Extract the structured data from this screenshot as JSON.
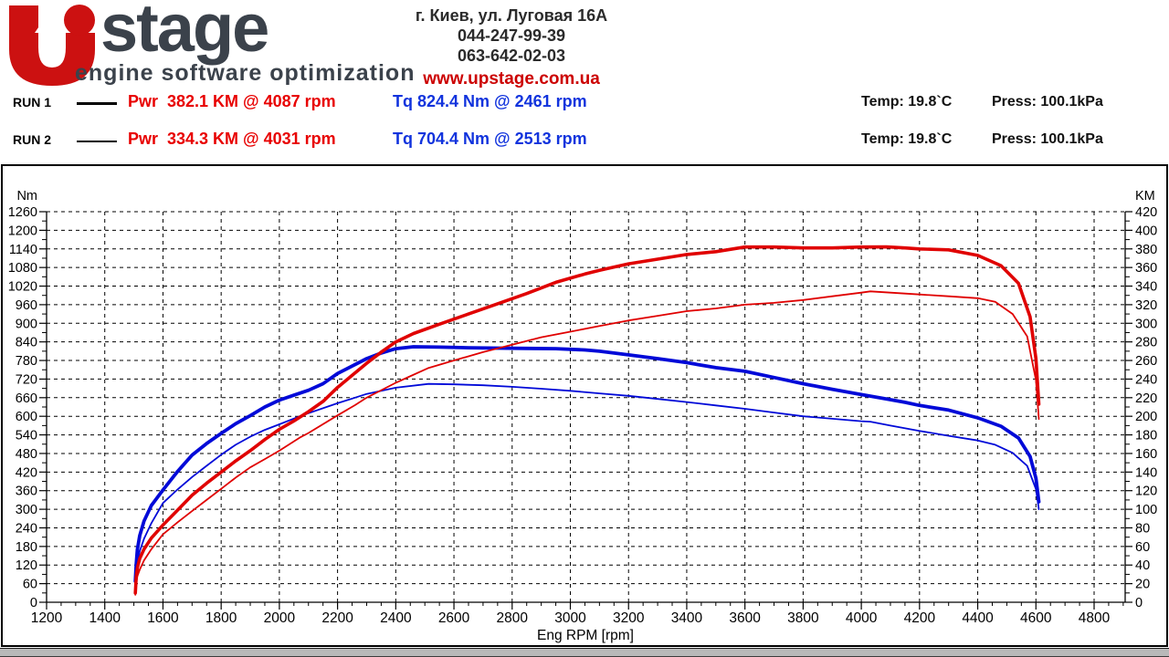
{
  "header": {
    "logo": {
      "brand_rest": "stage",
      "tagline": "engine software optimization"
    },
    "contact": {
      "address": "г. Киев, ул. Луговая 16А",
      "phone1": "044-247-99-39",
      "phone2": "063-642-02-03",
      "website": "www.upstage.com.ua"
    }
  },
  "runs": [
    {
      "label": "RUN 1",
      "power": "Pwr  382.1 KM @ 4087 rpm",
      "torque": "Tq 824.4 Nm @ 2461 rpm",
      "temp": "Temp: 19.8`C",
      "press": "Press: 100.1kPa"
    },
    {
      "label": "RUN 2",
      "power": "Pwr  334.3 KM @ 4031 rpm",
      "torque": "Tq 704.4 Nm @ 2513 rpm",
      "temp": "Temp: 19.8`C",
      "press": "Press: 100.1kPa"
    }
  ],
  "colors": {
    "curve_red": "#e00000",
    "curve_blue": "#0009d8",
    "grid": "#000000",
    "brand_gray": "#3b424b",
    "brand_red": "#cc1111"
  },
  "chart_data": {
    "type": "line",
    "title": "",
    "xlabel": "Eng RPM [rpm]",
    "x_axis": {
      "min": 1200,
      "max": 4906,
      "major_tick": 200,
      "minor_tick": 50,
      "tick_labels": [
        1200,
        1400,
        1600,
        1800,
        2000,
        2200,
        2400,
        2600,
        2800,
        3000,
        3200,
        3400,
        3600,
        3800,
        4000,
        4200,
        4400,
        4600,
        4800
      ]
    },
    "y_left": {
      "label": "Nm",
      "min": 0,
      "max": 1260,
      "major_tick": 60,
      "minor_tick": 30,
      "tick_labels": [
        0,
        60,
        120,
        180,
        240,
        300,
        360,
        420,
        480,
        540,
        600,
        660,
        720,
        780,
        840,
        900,
        960,
        1020,
        1080,
        1140,
        1200,
        1260
      ]
    },
    "y_right": {
      "label": "KM",
      "min": 0,
      "max": 420,
      "major_tick": 20,
      "minor_tick": 10,
      "tick_labels": [
        0,
        20,
        40,
        60,
        80,
        100,
        120,
        140,
        160,
        180,
        200,
        220,
        240,
        260,
        280,
        300,
        320,
        340,
        360,
        380,
        400,
        420
      ]
    },
    "grid": "dashed",
    "series": [
      {
        "name": "RUN 2 Torque",
        "axis": "left",
        "color": "#0009d8",
        "width": 1.8,
        "points": [
          [
            1505,
            55
          ],
          [
            1508,
            95
          ],
          [
            1512,
            130
          ],
          [
            1520,
            165
          ],
          [
            1535,
            205
          ],
          [
            1560,
            255
          ],
          [
            1600,
            320
          ],
          [
            1650,
            364
          ],
          [
            1700,
            404
          ],
          [
            1750,
            440
          ],
          [
            1800,
            476
          ],
          [
            1850,
            508
          ],
          [
            1900,
            534
          ],
          [
            1950,
            556
          ],
          [
            2000,
            574
          ],
          [
            2070,
            600
          ],
          [
            2100,
            610
          ],
          [
            2200,
            642
          ],
          [
            2260,
            660
          ],
          [
            2300,
            672
          ],
          [
            2400,
            692
          ],
          [
            2513,
            704.4
          ],
          [
            2600,
            703
          ],
          [
            2700,
            700
          ],
          [
            2800,
            695
          ],
          [
            2900,
            689
          ],
          [
            3000,
            682
          ],
          [
            3100,
            674
          ],
          [
            3200,
            666
          ],
          [
            3300,
            656
          ],
          [
            3400,
            646
          ],
          [
            3500,
            635
          ],
          [
            3600,
            624
          ],
          [
            3700,
            612
          ],
          [
            3800,
            600
          ],
          [
            3900,
            592
          ],
          [
            4000,
            584
          ],
          [
            4031,
            582.5
          ],
          [
            4100,
            570
          ],
          [
            4200,
            553
          ],
          [
            4300,
            537
          ],
          [
            4400,
            522
          ],
          [
            4460,
            508
          ],
          [
            4520,
            482
          ],
          [
            4570,
            440
          ],
          [
            4600,
            365
          ],
          [
            4610,
            300
          ]
        ]
      },
      {
        "name": "RUN 1 Torque",
        "axis": "left",
        "color": "#0009d8",
        "width": 3.8,
        "points": [
          [
            1505,
            68
          ],
          [
            1508,
            120
          ],
          [
            1512,
            170
          ],
          [
            1520,
            215
          ],
          [
            1535,
            262
          ],
          [
            1560,
            312
          ],
          [
            1600,
            362
          ],
          [
            1650,
            422
          ],
          [
            1700,
            475
          ],
          [
            1750,
            512
          ],
          [
            1800,
            545
          ],
          [
            1850,
            576
          ],
          [
            1900,
            602
          ],
          [
            1950,
            630
          ],
          [
            2000,
            652
          ],
          [
            2050,
            668
          ],
          [
            2100,
            684
          ],
          [
            2150,
            705
          ],
          [
            2200,
            738
          ],
          [
            2250,
            762
          ],
          [
            2300,
            786
          ],
          [
            2350,
            804
          ],
          [
            2400,
            818
          ],
          [
            2461,
            824.4
          ],
          [
            2550,
            823
          ],
          [
            2650,
            821
          ],
          [
            2750,
            820
          ],
          [
            2850,
            819
          ],
          [
            2950,
            818
          ],
          [
            3050,
            814
          ],
          [
            3100,
            810
          ],
          [
            3200,
            798
          ],
          [
            3300,
            786
          ],
          [
            3400,
            773
          ],
          [
            3500,
            757
          ],
          [
            3600,
            745
          ],
          [
            3700,
            725
          ],
          [
            3800,
            705
          ],
          [
            3900,
            687
          ],
          [
            4000,
            670
          ],
          [
            4087,
            656
          ],
          [
            4150,
            645
          ],
          [
            4200,
            635
          ],
          [
            4300,
            620
          ],
          [
            4400,
            595
          ],
          [
            4480,
            568
          ],
          [
            4540,
            530
          ],
          [
            4580,
            470
          ],
          [
            4600,
            400
          ],
          [
            4610,
            324
          ]
        ]
      },
      {
        "name": "RUN 2 Power",
        "axis": "right",
        "color": "#e00000",
        "width": 1.8,
        "points": [
          [
            1505,
            8
          ],
          [
            1508,
            20
          ],
          [
            1512,
            28
          ],
          [
            1520,
            35
          ],
          [
            1535,
            45
          ],
          [
            1560,
            57
          ],
          [
            1600,
            73
          ],
          [
            1650,
            86
          ],
          [
            1700,
            98
          ],
          [
            1750,
            110
          ],
          [
            1800,
            122
          ],
          [
            1850,
            134
          ],
          [
            1900,
            145
          ],
          [
            1950,
            154
          ],
          [
            2000,
            163
          ],
          [
            2070,
            177
          ],
          [
            2100,
            182
          ],
          [
            2200,
            201
          ],
          [
            2260,
            212
          ],
          [
            2300,
            220
          ],
          [
            2400,
            236
          ],
          [
            2513,
            252
          ],
          [
            2600,
            260
          ],
          [
            2700,
            269
          ],
          [
            2800,
            277
          ],
          [
            2900,
            285
          ],
          [
            3000,
            291
          ],
          [
            3100,
            297
          ],
          [
            3200,
            303
          ],
          [
            3300,
            308
          ],
          [
            3400,
            313
          ],
          [
            3500,
            316
          ],
          [
            3600,
            320
          ],
          [
            3700,
            322
          ],
          [
            3800,
            325
          ],
          [
            3900,
            329
          ],
          [
            4000,
            333
          ],
          [
            4031,
            334.3
          ],
          [
            4100,
            333
          ],
          [
            4200,
            331
          ],
          [
            4300,
            329
          ],
          [
            4400,
            327
          ],
          [
            4460,
            323
          ],
          [
            4520,
            310
          ],
          [
            4570,
            286
          ],
          [
            4600,
            239
          ],
          [
            4610,
            197
          ]
        ]
      },
      {
        "name": "RUN 1 Power",
        "axis": "right",
        "color": "#e00000",
        "width": 3.6,
        "points": [
          [
            1505,
            10
          ],
          [
            1508,
            26
          ],
          [
            1512,
            37
          ],
          [
            1520,
            47
          ],
          [
            1535,
            57
          ],
          [
            1560,
            69
          ],
          [
            1600,
            83
          ],
          [
            1650,
            99
          ],
          [
            1700,
            115
          ],
          [
            1750,
            128
          ],
          [
            1800,
            140
          ],
          [
            1850,
            152
          ],
          [
            1900,
            163
          ],
          [
            1950,
            175
          ],
          [
            2000,
            186
          ],
          [
            2050,
            195
          ],
          [
            2100,
            205
          ],
          [
            2150,
            216
          ],
          [
            2200,
            231
          ],
          [
            2250,
            244
          ],
          [
            2300,
            257
          ],
          [
            2350,
            269
          ],
          [
            2400,
            280
          ],
          [
            2461,
            289
          ],
          [
            2550,
            299
          ],
          [
            2650,
            310
          ],
          [
            2750,
            321
          ],
          [
            2850,
            332
          ],
          [
            2950,
            344
          ],
          [
            3050,
            353
          ],
          [
            3100,
            357
          ],
          [
            3200,
            364
          ],
          [
            3300,
            369
          ],
          [
            3400,
            374
          ],
          [
            3500,
            377
          ],
          [
            3600,
            382
          ],
          [
            3700,
            382
          ],
          [
            3800,
            381
          ],
          [
            3900,
            381
          ],
          [
            4000,
            382
          ],
          [
            4087,
            382.1
          ],
          [
            4150,
            381
          ],
          [
            4200,
            380
          ],
          [
            4300,
            379
          ],
          [
            4400,
            373
          ],
          [
            4480,
            362
          ],
          [
            4540,
            343
          ],
          [
            4580,
            307
          ],
          [
            4600,
            262
          ],
          [
            4610,
            213
          ]
        ]
      }
    ]
  }
}
